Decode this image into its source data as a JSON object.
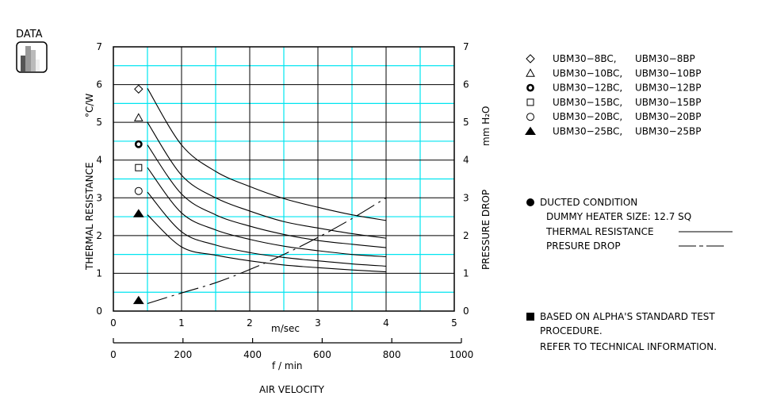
{
  "badge": {
    "label": "DATA",
    "icon": "bar-chart-icon"
  },
  "legend": {
    "items": [
      {
        "marker": "diamond-open",
        "bc": "UBM30−8BC,",
        "bp": "UBM30−8BP"
      },
      {
        "marker": "triangle-open",
        "bc": "UBM30−10BC,",
        "bp": "UBM30−10BP"
      },
      {
        "marker": "bullseye",
        "bc": "UBM30−12BC,",
        "bp": "UBM30−12BP"
      },
      {
        "marker": "square-open",
        "bc": "UBM30−15BC,",
        "bp": "UBM30−15BP"
      },
      {
        "marker": "circle-open",
        "bc": "UBM30−20BC,",
        "bp": "UBM30−20BP"
      },
      {
        "marker": "triangle-filled",
        "bc": "UBM30−25BC,",
        "bp": "UBM30−25BP"
      }
    ]
  },
  "notes": {
    "ducted": "DUCTED CONDITION",
    "heater": "DUMMY HEATER SIZE:  12.7 SQ",
    "thermal": "THERMAL RESISTANCE",
    "pressure": "PRESURE DROP",
    "based1": "BASED ON ALPHA'S STANDARD TEST",
    "based2": "PROCEDURE.",
    "based3": "REFER TO TECHNICAL INFORMATION."
  },
  "chart_data": {
    "type": "line",
    "xlabel": "m/sec",
    "x2label": "f / min",
    "xtitle": "AIR VELOCITY",
    "ylabel": "THERMAL  RESISTANCE",
    "yunit": "°C/W",
    "y2label": "PRESSURE  DROP",
    "y2unit": "mm H₂O",
    "xlim": [
      0,
      5
    ],
    "x2lim": [
      0,
      1000
    ],
    "ylim": [
      0,
      7
    ],
    "y2lim": [
      0,
      7
    ],
    "xticks": [
      "0",
      "1",
      "2",
      "3",
      "4",
      "5"
    ],
    "x2ticks": [
      "0",
      "200",
      "400",
      "600",
      "800",
      "1000"
    ],
    "yticks": [
      "0",
      "1",
      "2",
      "3",
      "4",
      "5",
      "6",
      "7"
    ],
    "grid": true,
    "grid_colors": {
      "major": "#000000",
      "minor": "#00e5f0"
    },
    "x": [
      0.5,
      1,
      1.5,
      2,
      2.5,
      3,
      3.5,
      4
    ],
    "series": [
      {
        "marker": "diamond-open",
        "style": "solid",
        "values": [
          5.9,
          4.4,
          3.7,
          3.3,
          2.98,
          2.75,
          2.55,
          2.4
        ]
      },
      {
        "marker": "triangle-open",
        "style": "solid",
        "values": [
          5.0,
          3.6,
          3.0,
          2.65,
          2.37,
          2.2,
          2.05,
          1.93
        ]
      },
      {
        "marker": "bullseye",
        "style": "solid",
        "values": [
          4.4,
          3.1,
          2.55,
          2.25,
          2.03,
          1.87,
          1.77,
          1.68
        ]
      },
      {
        "marker": "square-open",
        "style": "solid",
        "values": [
          3.8,
          2.6,
          2.15,
          1.9,
          1.72,
          1.6,
          1.5,
          1.44
        ]
      },
      {
        "marker": "circle-open",
        "style": "solid",
        "values": [
          3.15,
          2.1,
          1.75,
          1.55,
          1.42,
          1.33,
          1.25,
          1.19
        ]
      },
      {
        "marker": "triangle-filled",
        "style": "solid",
        "values": [
          2.55,
          1.7,
          1.48,
          1.33,
          1.22,
          1.15,
          1.09,
          1.04
        ]
      },
      {
        "marker": "triangle-filled",
        "style": "dash-dot",
        "axis": "right",
        "values": [
          0.2,
          0.48,
          0.75,
          1.1,
          1.5,
          1.95,
          2.45,
          3.0
        ]
      }
    ],
    "marker_points": [
      {
        "marker": "diamond-open",
        "x": 0.37,
        "y": 5.88
      },
      {
        "marker": "triangle-open",
        "x": 0.37,
        "y": 5.12
      },
      {
        "marker": "bullseye",
        "x": 0.37,
        "y": 4.42
      },
      {
        "marker": "square-open",
        "x": 0.37,
        "y": 3.8
      },
      {
        "marker": "circle-open",
        "x": 0.37,
        "y": 3.18
      },
      {
        "marker": "triangle-filled",
        "x": 0.37,
        "y": 2.58
      },
      {
        "marker": "triangle-filled",
        "x": 0.37,
        "y": 0.28
      }
    ]
  }
}
